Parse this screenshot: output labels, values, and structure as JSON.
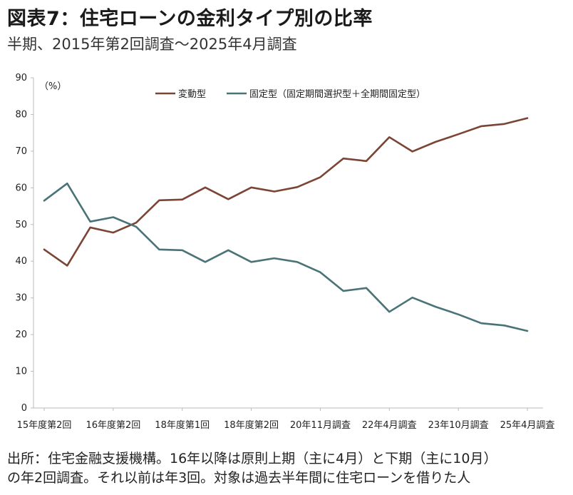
{
  "header": {
    "title": "図表7：住宅ローンの金利タイプ別の比率",
    "subtitle": "半期、2015年第2回調査～2025年4月調査"
  },
  "footer": {
    "source_line1": "出所：住宅金融支援機構。16年以降は原則上期（主に4月）と下期（主に10月）",
    "source_line2": "の年2回調査。それ以前は年3回。対象は過去半年間に住宅ローンを借りた人"
  },
  "chart_data": {
    "type": "line",
    "title": "",
    "xlabel": "",
    "ylabel": "",
    "unit_label": "（%）",
    "ylim": [
      0,
      90
    ],
    "yticks": [
      0,
      10,
      20,
      30,
      40,
      50,
      60,
      70,
      80,
      90
    ],
    "grid": false,
    "legend_position": "top",
    "x_tick_labels": [
      {
        "index": 0,
        "label": "15年度第2回"
      },
      {
        "index": 3,
        "label": "16年度第2回"
      },
      {
        "index": 6,
        "label": "18年度第1回"
      },
      {
        "index": 9,
        "label": "18年度第2回"
      },
      {
        "index": 12,
        "label": "20年11月調査"
      },
      {
        "index": 15,
        "label": "22年4月調査"
      },
      {
        "index": 18,
        "label": "23年10月調査"
      },
      {
        "index": 21,
        "label": "25年4月調査"
      }
    ],
    "point_count": 22,
    "series": [
      {
        "name": "変動型",
        "color": "#7a4535",
        "values": [
          43.2,
          38.8,
          49.2,
          47.8,
          50.5,
          56.6,
          56.8,
          60.1,
          56.9,
          60.1,
          59.0,
          60.2,
          62.9,
          68.0,
          67.3,
          73.8,
          69.9,
          72.5,
          74.6,
          76.8,
          77.4,
          79.0
        ]
      },
      {
        "name": "固定型（固定期間選択型＋全期間固定型）",
        "color": "#4a7378",
        "values": [
          56.5,
          61.2,
          50.8,
          52.0,
          49.4,
          43.2,
          43.0,
          39.8,
          43.0,
          39.8,
          40.8,
          39.8,
          37.0,
          31.9,
          32.7,
          26.2,
          30.1,
          27.6,
          25.5,
          23.1,
          22.5,
          21.0
        ]
      }
    ]
  }
}
